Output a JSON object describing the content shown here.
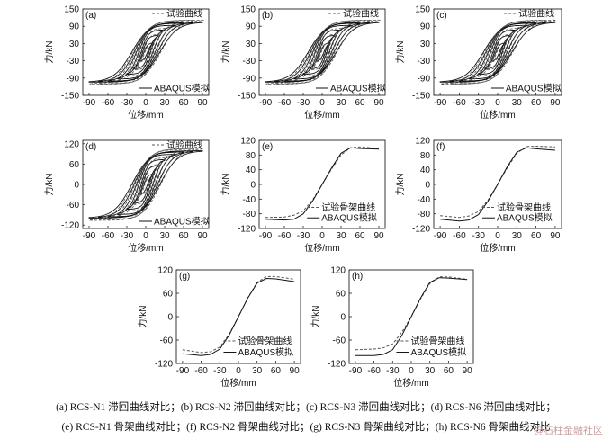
{
  "chart_data": [
    {
      "label": "(a)",
      "type": "line",
      "kind": "hysteresis",
      "ylabel": "力/kN",
      "xlabel": "位移/mm",
      "xticks": [
        -90,
        -60,
        -30,
        0,
        30,
        60,
        90
      ],
      "yticks": [
        -150,
        -90,
        -30,
        30,
        90,
        150
      ],
      "xlim": [
        -100,
        100
      ],
      "ylim": [
        -150,
        150
      ],
      "legend": [
        "试验曲线",
        "ABAQUS模拟"
      ],
      "amplitudes": [
        10,
        20,
        30,
        45,
        60,
        75,
        90
      ],
      "peak": 105
    },
    {
      "label": "(b)",
      "type": "line",
      "kind": "hysteresis",
      "ylabel": "力/kN",
      "xlabel": "位移/mm",
      "xticks": [
        -90,
        -60,
        -30,
        0,
        30,
        60,
        90
      ],
      "yticks": [
        -150,
        -90,
        -30,
        30,
        90,
        150
      ],
      "xlim": [
        -100,
        100
      ],
      "ylim": [
        -150,
        150
      ],
      "legend": [
        "试验曲线",
        "ABAQUS模拟"
      ],
      "amplitudes": [
        10,
        20,
        30,
        45,
        60,
        75,
        90
      ],
      "peak": 105
    },
    {
      "label": "(c)",
      "type": "line",
      "kind": "hysteresis",
      "ylabel": "力/kN",
      "xlabel": "位移/mm",
      "xticks": [
        -90,
        -60,
        -30,
        0,
        30,
        60,
        90
      ],
      "yticks": [
        -150,
        -90,
        -30,
        30,
        90,
        150
      ],
      "xlim": [
        -100,
        100
      ],
      "ylim": [
        -150,
        150
      ],
      "legend": [
        "试验曲线",
        "ABAQUS模拟"
      ],
      "amplitudes": [
        10,
        20,
        30,
        45,
        60,
        75,
        90
      ],
      "peak": 105
    },
    {
      "label": "(d)",
      "type": "line",
      "kind": "hysteresis",
      "ylabel": "力/kN",
      "xlabel": "位移/mm",
      "xticks": [
        -90,
        -60,
        -30,
        0,
        30,
        60,
        90
      ],
      "yticks": [
        -120,
        -60,
        0,
        60,
        120
      ],
      "xlim": [
        -100,
        100
      ],
      "ylim": [
        -130,
        130
      ],
      "legend": [
        "试验曲线",
        "ABAQUS模拟"
      ],
      "amplitudes": [
        10,
        20,
        30,
        45,
        60,
        75,
        90
      ],
      "peak": 100
    },
    {
      "label": "(e)",
      "type": "line",
      "kind": "skeleton",
      "ylabel": "力/kN",
      "xlabel": "位移/mm",
      "xticks": [
        -90,
        -60,
        -30,
        0,
        30,
        60,
        90
      ],
      "yticks": [
        -120,
        -80,
        -40,
        0,
        40,
        80,
        120
      ],
      "xlim": [
        -100,
        100
      ],
      "ylim": [
        -120,
        120
      ],
      "legend": [
        "试验骨架曲线",
        "ABAQUS模拟"
      ],
      "series": [
        {
          "x": [
            -90,
            -60,
            -45,
            -30,
            -15,
            0,
            15,
            30,
            45,
            60,
            90
          ],
          "y": [
            -90,
            -89,
            -84,
            -72,
            -42,
            0,
            42,
            80,
            100,
            102,
            98
          ]
        },
        {
          "x": [
            -90,
            -60,
            -45,
            -30,
            -15,
            0,
            15,
            30,
            45,
            60,
            90
          ],
          "y": [
            -95,
            -97,
            -95,
            -80,
            -45,
            0,
            45,
            85,
            100,
            98,
            96
          ]
        }
      ]
    },
    {
      "label": "(f)",
      "type": "line",
      "kind": "skeleton",
      "ylabel": "力/kN",
      "xlabel": "位移/mm",
      "xticks": [
        -90,
        -60,
        -30,
        0,
        30,
        60,
        90
      ],
      "yticks": [
        -120,
        -80,
        -40,
        0,
        40,
        80,
        120
      ],
      "xlim": [
        -100,
        100
      ],
      "ylim": [
        -120,
        120
      ],
      "legend": [
        "试验骨架曲线",
        "ABAQUS模拟"
      ],
      "series": [
        {
          "x": [
            -90,
            -60,
            -45,
            -30,
            -15,
            0,
            15,
            30,
            45,
            60,
            90
          ],
          "y": [
            -85,
            -90,
            -86,
            -74,
            -42,
            0,
            45,
            85,
            103,
            104,
            102
          ]
        },
        {
          "x": [
            -90,
            -60,
            -45,
            -30,
            -15,
            0,
            15,
            30,
            45,
            60,
            90
          ],
          "y": [
            -95,
            -100,
            -97,
            -82,
            -45,
            0,
            48,
            88,
            100,
            97,
            93
          ]
        }
      ]
    },
    {
      "label": "(g)",
      "type": "line",
      "kind": "skeleton",
      "ylabel": "力/kN",
      "xlabel": "位移/mm",
      "xticks": [
        -90,
        -60,
        -30,
        0,
        30,
        60,
        90
      ],
      "yticks": [
        -120,
        -60,
        0,
        60,
        120
      ],
      "xlim": [
        -100,
        100
      ],
      "ylim": [
        -120,
        120
      ],
      "legend": [
        "试验骨架曲线",
        "ABAQUS模拟"
      ],
      "series": [
        {
          "x": [
            -90,
            -60,
            -45,
            -30,
            -15,
            0,
            15,
            30,
            45,
            60,
            90
          ],
          "y": [
            -85,
            -92,
            -90,
            -78,
            -45,
            0,
            48,
            88,
            103,
            103,
            96
          ]
        },
        {
          "x": [
            -90,
            -60,
            -45,
            -30,
            -15,
            0,
            15,
            30,
            45,
            60,
            90
          ],
          "y": [
            -95,
            -100,
            -97,
            -83,
            -47,
            0,
            48,
            86,
            98,
            97,
            90
          ]
        }
      ]
    },
    {
      "label": "(h)",
      "type": "line",
      "kind": "skeleton",
      "ylabel": "力/kN",
      "xlabel": "位移/mm",
      "xticks": [
        -90,
        -60,
        -30,
        0,
        30,
        60,
        90
      ],
      "yticks": [
        -120,
        -60,
        0,
        60,
        120
      ],
      "xlim": [
        -100,
        100
      ],
      "ylim": [
        -120,
        120
      ],
      "legend": [
        "试验骨架曲线",
        "ABAQUS模拟"
      ],
      "series": [
        {
          "x": [
            -90,
            -60,
            -45,
            -30,
            -15,
            0,
            15,
            30,
            45,
            60,
            90
          ],
          "y": [
            -85,
            -83,
            -80,
            -70,
            -40,
            0,
            46,
            85,
            102,
            102,
            96
          ]
        },
        {
          "x": [
            -90,
            -60,
            -45,
            -30,
            -15,
            0,
            15,
            30,
            45,
            60,
            90
          ],
          "y": [
            -100,
            -100,
            -97,
            -85,
            -48,
            0,
            48,
            88,
            100,
            99,
            95
          ]
        }
      ]
    }
  ],
  "caption": {
    "line1": "(a) RCS-N1 滞回曲线对比；(b) RCS-N2 滞回曲线对比；(c) RCS-N3 滞回曲线对比；(d) RCS-N6 滞回曲线对比；",
    "line2": "(e) RCS-N1 骨架曲线对比；(f) RCS-N2 骨架曲线对比；(g) RCS-N3 骨架曲线对比；(h) RCS-N6 骨架曲线对比"
  },
  "watermark": "@石柱金融社区"
}
